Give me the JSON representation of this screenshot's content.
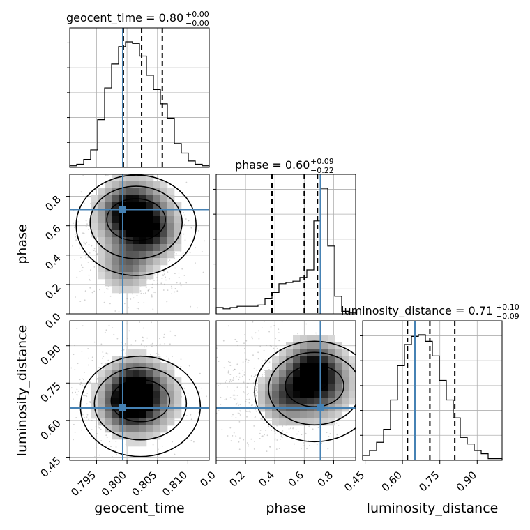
{
  "chart_data": {
    "type": "corner",
    "parameters": [
      "geocent_time",
      "phase",
      "luminosity_distance"
    ],
    "truths": {
      "geocent_time": 0.7993,
      "phase": 0.71,
      "luminosity_distance": 0.65
    },
    "truth_color": "#4682b4",
    "grid": true,
    "titles": [
      {
        "name": "geocent_time",
        "median": "0.80",
        "plus": "+0.00",
        "minus": "−0.00"
      },
      {
        "name": "phase",
        "median": "0.60",
        "plus": "+0.09",
        "minus": "−0.22"
      },
      {
        "name": "luminosity_distance",
        "median": "0.71",
        "plus": "+0.10",
        "minus": "−0.09"
      }
    ],
    "axes": {
      "geocent_time": {
        "range": [
          0.7906,
          0.8135
        ],
        "ticks": [
          0.795,
          0.8,
          0.805,
          0.81
        ],
        "tick_labels": [
          "0.795",
          "0.800",
          "0.805",
          "0.810"
        ]
      },
      "phase": {
        "range": [
          0.0,
          0.95
        ],
        "ticks": [
          0.0,
          0.2,
          0.4,
          0.6,
          0.8
        ],
        "tick_labels": [
          "0.0",
          "0.2",
          "0.4",
          "0.6",
          "0.8"
        ]
      },
      "luminosity_distance": {
        "range": [
          0.44,
          1.0
        ],
        "ticks": [
          0.45,
          0.6,
          0.75,
          0.9
        ],
        "tick_labels": [
          "0.45",
          "0.60",
          "0.75",
          "0.90"
        ]
      }
    },
    "hist_quantiles": {
      "geocent_time": [
        0.7994,
        0.8024,
        0.8058
      ],
      "phase": [
        0.38,
        0.6,
        0.69
      ],
      "luminosity_distance": [
        0.62,
        0.71,
        0.81
      ]
    },
    "histograms": {
      "geocent_time": {
        "edges_range": [
          0.7906,
          0.8135
        ],
        "bins": 20,
        "counts": [
          1,
          2,
          5,
          11,
          30,
          50,
          65,
          76,
          79,
          78,
          70,
          58,
          49,
          40,
          31,
          15,
          9,
          4,
          2,
          1
        ]
      },
      "phase": {
        "edges_range": [
          0.0,
          0.95
        ],
        "bins": 20,
        "counts": [
          5,
          4,
          5,
          6,
          6,
          6,
          7,
          12,
          17,
          24,
          25,
          26,
          29,
          35,
          74,
          100,
          54,
          14,
          2,
          1
        ]
      },
      "luminosity_distance": {
        "edges_range": [
          0.44,
          1.0
        ],
        "bins": 20,
        "counts": [
          3,
          6,
          11,
          19,
          37,
          58,
          71,
          76,
          77,
          73,
          64,
          49,
          37,
          26,
          14,
          10,
          6,
          4,
          1,
          1
        ]
      }
    },
    "pairs": [
      {
        "x": "geocent_time",
        "y": "phase",
        "hotspots": [
          [
            0.8015,
            0.66
          ],
          [
            0.8,
            0.69
          ],
          [
            0.8043,
            0.54
          ],
          [
            0.7998,
            0.33
          ]
        ]
      },
      {
        "x": "geocent_time",
        "y": "luminosity_distance",
        "hotspots": [
          [
            0.8022,
            0.69
          ],
          [
            0.801,
            0.74
          ],
          [
            0.7998,
            0.65
          ]
        ]
      },
      {
        "x": "phase",
        "y": "luminosity_distance",
        "hotspots": [
          [
            0.67,
            0.75
          ],
          [
            0.66,
            0.82
          ],
          [
            0.46,
            0.69
          ]
        ]
      }
    ]
  }
}
